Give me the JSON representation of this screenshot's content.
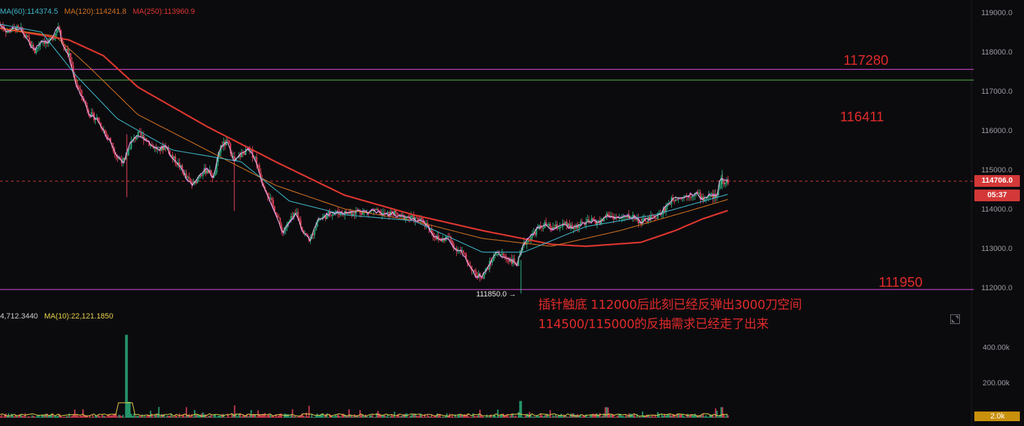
{
  "ma_legend": {
    "ma60": "MA(60):114374.5",
    "ma120": "MA(120):114241.8",
    "ma250": "MA(250):113960.9"
  },
  "volume_legend": {
    "vol": "4,712.3440",
    "ma10": "MA(10):22,121.1850"
  },
  "annotations": {
    "line1": "插针触底 112000后此刻已经反弹出3000刀空间",
    "line2": "114500/115000的反抽需求已经走了出来"
  },
  "levels": {
    "l117280": "117280",
    "l116411": "116411",
    "l111950": "111950"
  },
  "current_price": "114706.0",
  "countdown": "05:37",
  "low_marker": "111850.0",
  "volume_current": "2.0k",
  "colors": {
    "up": "#2ebd85",
    "down": "#f6465d",
    "ma250": "#e0362f",
    "ma120": "#d0711f",
    "ma_magenta": "#d04bd4",
    "ma_teal": "#3fb6c9",
    "white_ma": "#e8e8e8",
    "level_magenta": "#e34fe3",
    "level_green": "#58c04a",
    "annot": "#e02a2a"
  },
  "chart_data": {
    "type": "candlestick",
    "price_axis": {
      "ticks": [
        119000.0,
        118000.0,
        117000.0,
        116000.0,
        115000.0,
        114000.0,
        113000.0,
        112000.0
      ],
      "tick_labels": [
        "119000.0",
        "118000.0",
        "117000.0",
        "116000.0",
        "115000.0",
        "114000.0",
        "113000.0",
        "112000.0"
      ],
      "range": [
        111700,
        119250
      ]
    },
    "volume_axis": {
      "ticks": [
        400000,
        200000
      ],
      "tick_labels": [
        "400.00k",
        "200.00k"
      ],
      "range": [
        0,
        480000
      ]
    },
    "horizontal_levels": [
      {
        "label": "117280",
        "value": 117550,
        "color": "magenta"
      },
      {
        "label": "",
        "value": 117280,
        "color": "green"
      },
      {
        "label": "111950",
        "value": 111950,
        "color": "magenta"
      }
    ],
    "close_anchors": [
      [
        0,
        118700
      ],
      [
        10,
        118500
      ],
      [
        20,
        118600
      ],
      [
        30,
        118550
      ],
      [
        40,
        118300
      ],
      [
        50,
        118000
      ],
      [
        60,
        118300
      ],
      [
        70,
        118200
      ],
      [
        80,
        118500
      ],
      [
        85,
        118700
      ],
      [
        90,
        118200
      ],
      [
        100,
        117900
      ],
      [
        110,
        117200
      ],
      [
        120,
        116800
      ],
      [
        130,
        116400
      ],
      [
        140,
        116300
      ],
      [
        150,
        116000
      ],
      [
        160,
        115700
      ],
      [
        170,
        115300
      ],
      [
        180,
        115200
      ],
      [
        190,
        115700
      ],
      [
        200,
        115900
      ],
      [
        210,
        115800
      ],
      [
        220,
        115600
      ],
      [
        230,
        115500
      ],
      [
        240,
        115600
      ],
      [
        250,
        115300
      ],
      [
        260,
        115100
      ],
      [
        270,
        114800
      ],
      [
        280,
        114600
      ],
      [
        290,
        114900
      ],
      [
        300,
        115000
      ],
      [
        310,
        114800
      ],
      [
        320,
        115600
      ],
      [
        330,
        115700
      ],
      [
        340,
        115200
      ],
      [
        350,
        115400
      ],
      [
        360,
        115500
      ],
      [
        370,
        115300
      ],
      [
        380,
        114700
      ],
      [
        390,
        114300
      ],
      [
        400,
        113900
      ],
      [
        410,
        113400
      ],
      [
        420,
        113700
      ],
      [
        430,
        113900
      ],
      [
        440,
        113400
      ],
      [
        450,
        113200
      ],
      [
        460,
        113700
      ],
      [
        470,
        113800
      ],
      [
        480,
        113900
      ],
      [
        490,
        113900
      ],
      [
        500,
        113900
      ],
      [
        510,
        113900
      ],
      [
        520,
        113950
      ],
      [
        530,
        113900
      ],
      [
        540,
        113950
      ],
      [
        550,
        113900
      ],
      [
        560,
        113850
      ],
      [
        570,
        113900
      ],
      [
        580,
        113800
      ],
      [
        590,
        113800
      ],
      [
        600,
        113750
      ],
      [
        610,
        113700
      ],
      [
        620,
        113600
      ],
      [
        630,
        113300
      ],
      [
        640,
        113200
      ],
      [
        650,
        113300
      ],
      [
        660,
        113000
      ],
      [
        670,
        112900
      ],
      [
        680,
        112600
      ],
      [
        690,
        112300
      ],
      [
        700,
        112300
      ],
      [
        710,
        112600
      ],
      [
        720,
        112900
      ],
      [
        730,
        112800
      ],
      [
        740,
        112700
      ],
      [
        750,
        112600
      ],
      [
        760,
        113100
      ],
      [
        770,
        113300
      ],
      [
        780,
        113500
      ],
      [
        790,
        113600
      ],
      [
        800,
        113500
      ],
      [
        810,
        113550
      ],
      [
        820,
        113600
      ],
      [
        830,
        113500
      ],
      [
        840,
        113600
      ],
      [
        850,
        113650
      ],
      [
        860,
        113700
      ],
      [
        870,
        113650
      ],
      [
        880,
        113850
      ],
      [
        890,
        113800
      ],
      [
        900,
        113750
      ],
      [
        910,
        113800
      ],
      [
        920,
        113800
      ],
      [
        930,
        113650
      ],
      [
        940,
        113750
      ],
      [
        950,
        113800
      ],
      [
        960,
        113900
      ],
      [
        970,
        114150
      ],
      [
        980,
        114300
      ],
      [
        990,
        114300
      ],
      [
        1000,
        114350
      ],
      [
        1010,
        114400
      ],
      [
        1020,
        114250
      ],
      [
        1030,
        114350
      ],
      [
        1040,
        114300
      ],
      [
        1045,
        114800
      ],
      [
        1050,
        114700
      ],
      [
        1056,
        114706
      ]
    ],
    "volume_spikes": [
      [
        183,
        470000
      ],
      [
        187,
        90000
      ],
      [
        270,
        60000
      ],
      [
        340,
        70000
      ],
      [
        755,
        95000
      ],
      [
        879,
        60000
      ],
      [
        1047,
        60000
      ]
    ],
    "ma250_anchors": [
      [
        0,
        118600
      ],
      [
        100,
        118300
      ],
      [
        150,
        117900
      ],
      [
        200,
        117100
      ],
      [
        300,
        116100
      ],
      [
        400,
        115200
      ],
      [
        500,
        114350
      ],
      [
        600,
        113850
      ],
      [
        700,
        113450
      ],
      [
        800,
        113100
      ],
      [
        850,
        113050
      ],
      [
        930,
        113150
      ],
      [
        980,
        113450
      ],
      [
        1020,
        113750
      ],
      [
        1056,
        113960
      ]
    ],
    "ma120_anchors": [
      [
        0,
        118600
      ],
      [
        80,
        118400
      ],
      [
        130,
        117600
      ],
      [
        200,
        116400
      ],
      [
        300,
        115500
      ],
      [
        400,
        114600
      ],
      [
        500,
        114000
      ],
      [
        600,
        113700
      ],
      [
        700,
        113250
      ],
      [
        800,
        113050
      ],
      [
        900,
        113450
      ],
      [
        1000,
        113950
      ],
      [
        1056,
        114240
      ]
    ],
    "ma60_anchors": [
      [
        0,
        118700
      ],
      [
        60,
        118500
      ],
      [
        110,
        117400
      ],
      [
        170,
        116300
      ],
      [
        250,
        115500
      ],
      [
        350,
        115200
      ],
      [
        420,
        114200
      ],
      [
        500,
        113850
      ],
      [
        600,
        113700
      ],
      [
        700,
        112900
      ],
      [
        760,
        112900
      ],
      [
        850,
        113550
      ],
      [
        950,
        113850
      ],
      [
        1056,
        114370
      ]
    ]
  }
}
